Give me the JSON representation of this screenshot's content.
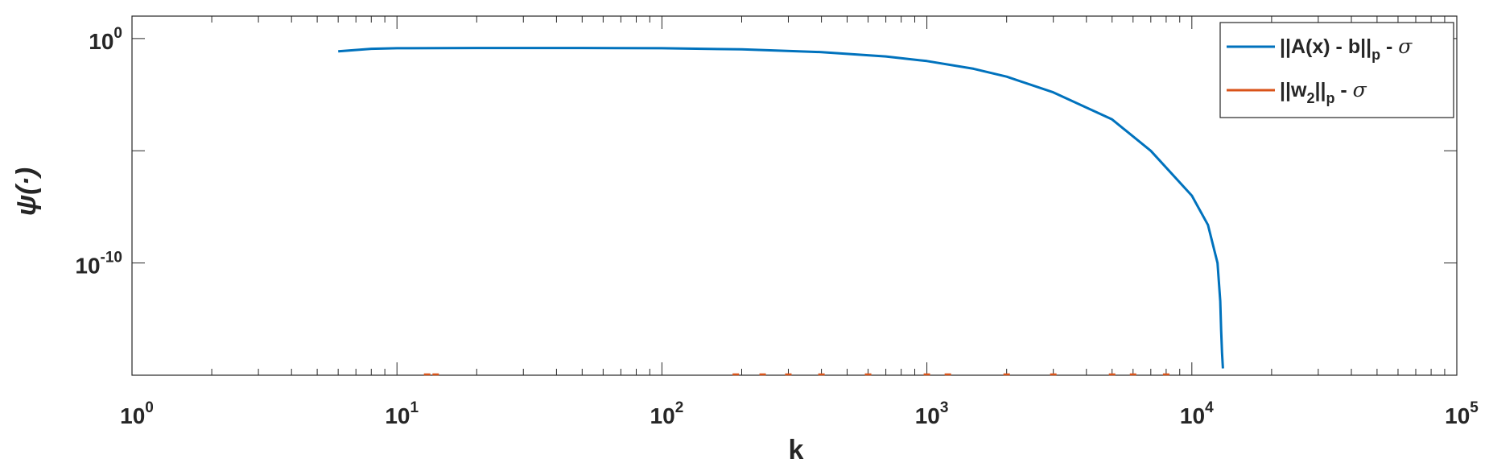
{
  "chart_data": {
    "type": "line",
    "title": "",
    "xlabel": "k",
    "ylabel": "ψ(·)",
    "xscale": "log",
    "yscale": "log",
    "xlim": [
      1,
      100000
    ],
    "ylim": [
      1e-15,
      10
    ],
    "grid": false,
    "legend_position": "top-right",
    "x_ticks": [
      {
        "base": "10",
        "exp": "0",
        "value": 1
      },
      {
        "base": "10",
        "exp": "1",
        "value": 10
      },
      {
        "base": "10",
        "exp": "2",
        "value": 100
      },
      {
        "base": "10",
        "exp": "3",
        "value": 1000
      },
      {
        "base": "10",
        "exp": "4",
        "value": 10000
      },
      {
        "base": "10",
        "exp": "5",
        "value": 100000
      }
    ],
    "y_ticks": [
      {
        "base": "10",
        "exp": "0",
        "value": 1
      },
      {
        "base": "10",
        "exp": "-10",
        "value": 1e-10
      }
    ],
    "series": [
      {
        "legend_parts": {
          "pre": "||A(x) - b||",
          "sub": "p",
          "post": " - ",
          "sym": "σ"
        },
        "color": "#0072BD",
        "x": [
          6,
          8,
          10,
          20,
          50,
          100,
          200,
          400,
          700,
          1000,
          1500,
          2000,
          3000,
          5000,
          7000,
          10000,
          11500,
          12500,
          12800,
          12900,
          13000,
          13100
        ],
        "y": [
          0.27,
          0.35,
          0.37,
          0.38,
          0.38,
          0.37,
          0.33,
          0.25,
          0.16,
          0.1,
          0.045,
          0.02,
          0.004,
          0.00025,
          1e-05,
          1e-07,
          5e-09,
          1e-10,
          2e-12,
          1e-13,
          1e-14,
          2e-15
        ]
      },
      {
        "legend_parts": {
          "pre": "||w",
          "sub2": "2",
          "mid": "||",
          "sub": "p",
          "post": " - ",
          "sym": "σ"
        },
        "color": "#D95319",
        "x": [
          13,
          14,
          190,
          240,
          300,
          400,
          600,
          1000,
          1200,
          2000,
          3000,
          5000,
          6000,
          8000
        ],
        "y": [
          1e-15,
          1e-15,
          1e-15,
          1e-15,
          1e-15,
          1e-15,
          1e-15,
          1e-15,
          1e-15,
          1e-15,
          1e-15,
          1e-15,
          1e-15,
          1e-15
        ]
      }
    ]
  }
}
